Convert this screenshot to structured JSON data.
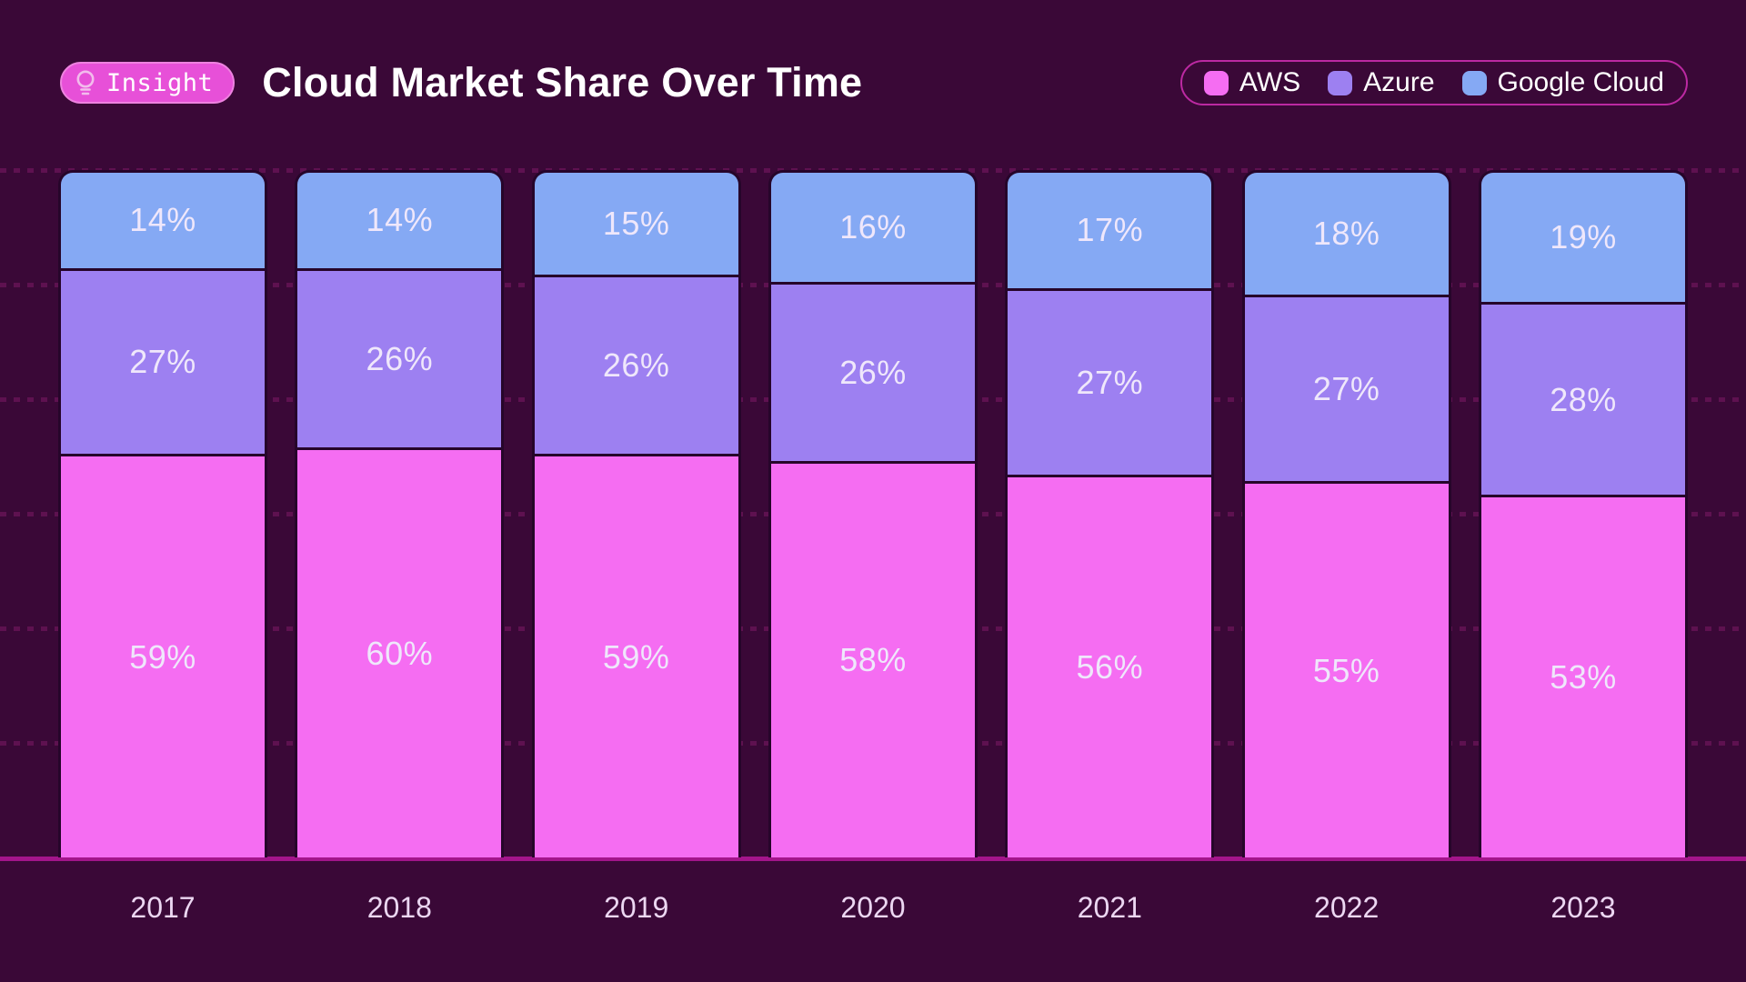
{
  "page": {
    "background": "#3A0837"
  },
  "header": {
    "badge": {
      "label": "Insight",
      "icon": "lightbulb-icon",
      "bg": "#E750D8",
      "border": "#EE82E0"
    },
    "title": "Cloud Market Share Over Time"
  },
  "legend": {
    "border_color": "#BC29A2",
    "items": [
      {
        "label": "AWS",
        "color": "#F56DF2"
      },
      {
        "label": "Azure",
        "color": "#9D80F1"
      },
      {
        "label": "Google Cloud",
        "color": "#85A9F4"
      }
    ]
  },
  "chart_data": {
    "type": "bar",
    "stacked": true,
    "title": "Cloud Market Share Over Time",
    "categories": [
      "2017",
      "2018",
      "2019",
      "2020",
      "2021",
      "2022",
      "2023"
    ],
    "series": [
      {
        "name": "AWS",
        "color": "#F56DF2",
        "values": [
          59,
          60,
          59,
          58,
          56,
          55,
          53
        ]
      },
      {
        "name": "Azure",
        "color": "#9D80F1",
        "values": [
          27,
          26,
          26,
          26,
          27,
          27,
          28
        ]
      },
      {
        "name": "Google Cloud",
        "color": "#85A9F4",
        "values": [
          14,
          14,
          15,
          16,
          17,
          18,
          19
        ]
      }
    ],
    "label_format": "{value}%",
    "ylim": [
      0,
      100
    ],
    "grid": "dotted-horizontal",
    "gridline_color": "#5E1150",
    "baseline_color": "#A3158B",
    "segment_outline_color": "#26052A",
    "legend_position": "top-right",
    "stack_order_top_to_bottom": [
      "Google Cloud",
      "Azure",
      "AWS"
    ]
  },
  "x_axis": {
    "labels": [
      "2017",
      "2018",
      "2019",
      "2020",
      "2021",
      "2022",
      "2023"
    ]
  }
}
